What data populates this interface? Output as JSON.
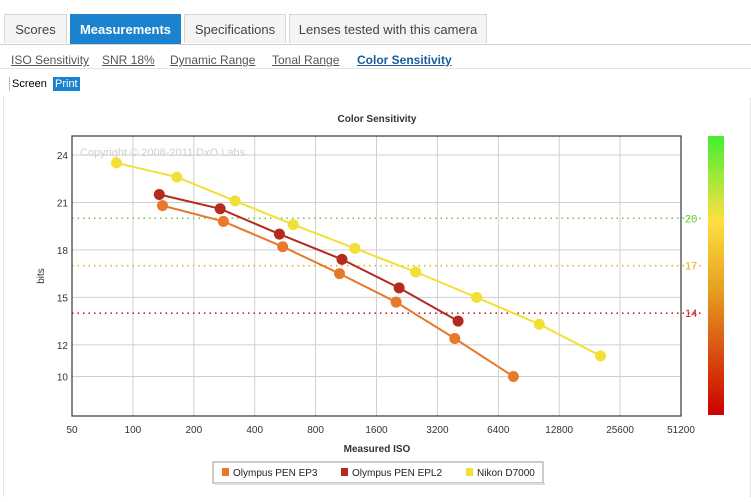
{
  "tabs": [
    {
      "label": "Scores",
      "active": false
    },
    {
      "label": "Measurements",
      "active": true
    },
    {
      "label": "Specifications",
      "active": false
    },
    {
      "label": "Lenses tested with this camera",
      "active": false
    }
  ],
  "subnav": [
    {
      "label": "ISO Sensitivity",
      "active": false
    },
    {
      "label": "SNR 18%",
      "active": false
    },
    {
      "label": "Dynamic Range",
      "active": false
    },
    {
      "label": "Tonal Range",
      "active": false
    },
    {
      "label": "Color Sensitivity",
      "active": true
    }
  ],
  "modes": {
    "screen": "Screen",
    "print": "Print",
    "selected": "print"
  },
  "chart_data": {
    "type": "line",
    "title": "Color Sensitivity",
    "xlabel": "Measured ISO",
    "ylabel": "bits",
    "watermark": "Copyright © 2008-2011 DxO Labs",
    "x_scale": "log2",
    "xlim": [
      50,
      51200
    ],
    "x_ticks": [
      50,
      100,
      200,
      400,
      800,
      1600,
      3200,
      6400,
      12800,
      25600,
      51200
    ],
    "x_tick_labels": [
      "50",
      "100",
      "200",
      "400",
      "800",
      "1600",
      "3200",
      "6400",
      "12800",
      "25600",
      "51200"
    ],
    "ylim": [
      7.5,
      25.2
    ],
    "y_ticks": [
      10,
      12,
      15,
      18,
      21,
      24
    ],
    "grid": true,
    "legend_position": "bottom-center",
    "reference_lines": [
      {
        "value": 20,
        "label": "20",
        "color": "#66cc33"
      },
      {
        "value": 17,
        "label": "17",
        "color": "#e8b020"
      },
      {
        "value": 14,
        "label": "14",
        "color": "#cc2222"
      }
    ],
    "color_scale": {
      "colors": [
        "#cc0000",
        "#e6a020",
        "#ffe040",
        "#44ee33"
      ]
    },
    "series": [
      {
        "name": "Olympus PEN EP3",
        "color": "#e8782a",
        "points": [
          [
            140,
            20.8
          ],
          [
            280,
            19.8
          ],
          [
            550,
            18.2
          ],
          [
            1050,
            16.5
          ],
          [
            2000,
            14.7
          ],
          [
            3900,
            12.4
          ],
          [
            7600,
            10.0
          ]
        ]
      },
      {
        "name": "Olympus PEN EPL2",
        "color": "#b52a1e",
        "points": [
          [
            135,
            21.5
          ],
          [
            270,
            20.6
          ],
          [
            530,
            19.0
          ],
          [
            1080,
            17.4
          ],
          [
            2070,
            15.6
          ],
          [
            4050,
            13.5
          ]
        ]
      },
      {
        "name": "Nikon D7000",
        "color": "#f2e036",
        "points": [
          [
            83,
            23.5
          ],
          [
            165,
            22.6
          ],
          [
            320,
            21.1
          ],
          [
            620,
            19.6
          ],
          [
            1250,
            18.1
          ],
          [
            2500,
            16.6
          ],
          [
            5000,
            15.0
          ],
          [
            10200,
            13.3
          ],
          [
            20500,
            11.3
          ]
        ]
      }
    ]
  }
}
